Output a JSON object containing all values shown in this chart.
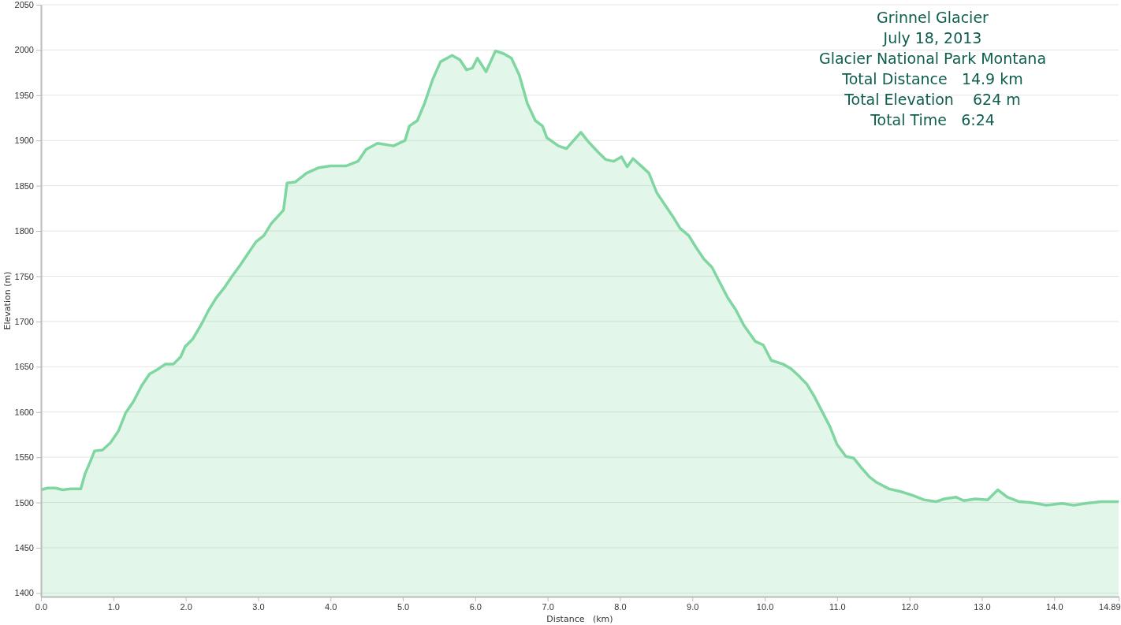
{
  "chart_data": {
    "type": "area",
    "title": "Grinnel Glacier",
    "subtitle": "July 18, 2013",
    "annotations": [
      "Glacier National Park Montana",
      "Total Distance   14.9 km",
      "Total Elevation    624 m",
      "Total Time   6:24"
    ],
    "xlabel": "Distance   (km)",
    "ylabel": "Elevation (m)",
    "xlim": [
      0,
      14.89
    ],
    "xticks": [
      {
        "value": 0,
        "label": "0.0"
      },
      {
        "value": 1,
        "label": "1.0"
      },
      {
        "value": 2,
        "label": "2.0"
      },
      {
        "value": 3,
        "label": "3.0"
      },
      {
        "value": 4,
        "label": "4.0"
      },
      {
        "value": 5,
        "label": "5.0"
      },
      {
        "value": 6,
        "label": "6.0"
      },
      {
        "value": 7,
        "label": "7.0"
      },
      {
        "value": 8,
        "label": "8.0"
      },
      {
        "value": 9,
        "label": "9.0"
      },
      {
        "value": 10,
        "label": "10.0"
      },
      {
        "value": 11,
        "label": "11.0"
      },
      {
        "value": 12,
        "label": "12.0"
      },
      {
        "value": 13,
        "label": "13.0"
      },
      {
        "value": 14,
        "label": "14.0"
      },
      14.89
    ],
    "ylim": [
      1396,
      2050
    ],
    "yticks": [
      1400,
      1450,
      1500,
      1550,
      1600,
      1650,
      1700,
      1750,
      1800,
      1850,
      1900,
      1950,
      2000,
      2050
    ],
    "grid": "y",
    "series": [
      {
        "color": "#80d6a0",
        "x": [
          0,
          0.09,
          0.2,
          0.3,
          0.41,
          0.55,
          0.61,
          0.68,
          0.74,
          0.85,
          0.96,
          1.07,
          1.17,
          1.28,
          1.39,
          1.5,
          1.61,
          1.72,
          1.83,
          1.93,
          1.99,
          2.1,
          2.21,
          2.32,
          2.42,
          2.53,
          2.64,
          2.75,
          2.86,
          2.97,
          3.08,
          3.18,
          3.35,
          3.4,
          3.51,
          3.67,
          3.84,
          4.0,
          4.22,
          4.38,
          4.49,
          4.65,
          4.87,
          5.03,
          5.09,
          5.2,
          5.3,
          5.41,
          5.52,
          5.68,
          5.79,
          5.88,
          5.96,
          6.03,
          6.15,
          6.28,
          6.39,
          6.5,
          6.61,
          6.72,
          6.83,
          6.93,
          6.99,
          7.15,
          7.26,
          7.37,
          7.46,
          7.57,
          7.7,
          7.8,
          7.91,
          8.02,
          8.1,
          8.18,
          8.29,
          8.4,
          8.51,
          8.62,
          8.73,
          8.83,
          8.95,
          9.05,
          9.16,
          9.27,
          9.38,
          9.49,
          9.6,
          9.71,
          9.87,
          9.98,
          10.09,
          10.25,
          10.36,
          10.47,
          10.58,
          10.68,
          10.79,
          10.9,
          11.0,
          11.12,
          11.23,
          11.33,
          11.45,
          11.55,
          11.72,
          11.88,
          12.04,
          12.2,
          12.37,
          12.48,
          12.64,
          12.75,
          12.91,
          13.08,
          13.22,
          13.35,
          13.51,
          13.67,
          13.89,
          14.11,
          14.27,
          14.43,
          14.65,
          14.89
        ],
        "values": [
          1514,
          1516,
          1516,
          1514,
          1515,
          1515,
          1532,
          1545,
          1557,
          1558,
          1566,
          1579,
          1599,
          1612,
          1629,
          1642,
          1647,
          1653,
          1653,
          1661,
          1672,
          1681,
          1696,
          1713,
          1726,
          1737,
          1750,
          1762,
          1775,
          1788,
          1795,
          1808,
          1823,
          1853,
          1854,
          1864,
          1870,
          1872,
          1872,
          1877,
          1890,
          1897,
          1894,
          1900,
          1916,
          1922,
          1941,
          1967,
          1987,
          1994,
          1989,
          1978,
          1980,
          1991,
          1976,
          1999,
          1996,
          1991,
          1972,
          1941,
          1922,
          1916,
          1903,
          1894,
          1891,
          1901,
          1909,
          1898,
          1887,
          1879,
          1877,
          1882,
          1871,
          1880,
          1872,
          1864,
          1842,
          1829,
          1816,
          1803,
          1795,
          1782,
          1769,
          1760,
          1743,
          1726,
          1713,
          1696,
          1678,
          1674,
          1657,
          1653,
          1648,
          1640,
          1631,
          1618,
          1601,
          1584,
          1564,
          1551,
          1549,
          1539,
          1528,
          1522,
          1515,
          1512,
          1508,
          1503,
          1501,
          1504,
          1506,
          1502,
          1504,
          1503,
          1514,
          1506,
          1501,
          1500,
          1497,
          1499,
          1497,
          1499,
          1501,
          1501
        ]
      }
    ]
  }
}
